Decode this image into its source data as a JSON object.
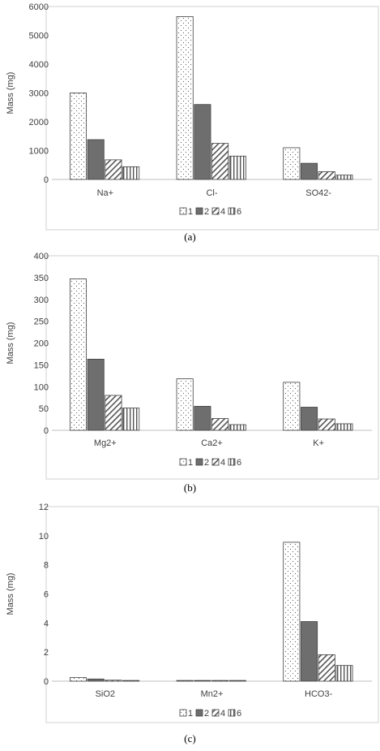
{
  "chart_data": [
    {
      "type": "bar",
      "categories": [
        "Na+",
        "Cl-",
        "SO42-"
      ],
      "series": [
        {
          "name": "1",
          "values": [
            3000,
            5650,
            1100
          ]
        },
        {
          "name": "2",
          "values": [
            1380,
            2600,
            560
          ]
        },
        {
          "name": "4",
          "values": [
            680,
            1250,
            270
          ]
        },
        {
          "name": "6",
          "values": [
            440,
            810,
            150
          ]
        }
      ],
      "title": "",
      "xlabel": "",
      "ylabel": "Mass (mg)",
      "ylim": [
        0,
        6000
      ],
      "yticks": [
        0,
        1000,
        2000,
        3000,
        4000,
        5000,
        6000
      ],
      "grid": false,
      "legend": "bottom",
      "caption": "(a)"
    },
    {
      "type": "bar",
      "categories": [
        "Mg2+",
        "Ca2+",
        "K+"
      ],
      "series": [
        {
          "name": "1",
          "values": [
            347,
            118,
            110
          ]
        },
        {
          "name": "2",
          "values": [
            163,
            55,
            53
          ]
        },
        {
          "name": "4",
          "values": [
            80,
            27,
            26
          ]
        },
        {
          "name": "6",
          "values": [
            51,
            13,
            15
          ]
        }
      ],
      "title": "",
      "xlabel": "",
      "ylabel": "Mass (mg)",
      "ylim": [
        0,
        400
      ],
      "yticks": [
        0,
        50,
        100,
        150,
        200,
        250,
        300,
        350,
        400
      ],
      "grid": false,
      "legend": "bottom",
      "caption": "(b)"
    },
    {
      "type": "bar",
      "categories": [
        "SiO2",
        "Mn2+",
        "HCO3-"
      ],
      "series": [
        {
          "name": "1",
          "values": [
            0.25,
            0.05,
            9.55
          ]
        },
        {
          "name": "2",
          "values": [
            0.15,
            0.05,
            4.1
          ]
        },
        {
          "name": "4",
          "values": [
            0.07,
            0.05,
            1.82
          ]
        },
        {
          "name": "6",
          "values": [
            0.05,
            0.05,
            1.08
          ]
        }
      ],
      "title": "",
      "xlabel": "",
      "ylabel": "Mass (mg)",
      "ylim": [
        0,
        12
      ],
      "yticks": [
        0,
        2,
        4,
        6,
        8,
        10,
        12
      ],
      "grid": false,
      "legend": "bottom",
      "caption": "(c)"
    }
  ]
}
